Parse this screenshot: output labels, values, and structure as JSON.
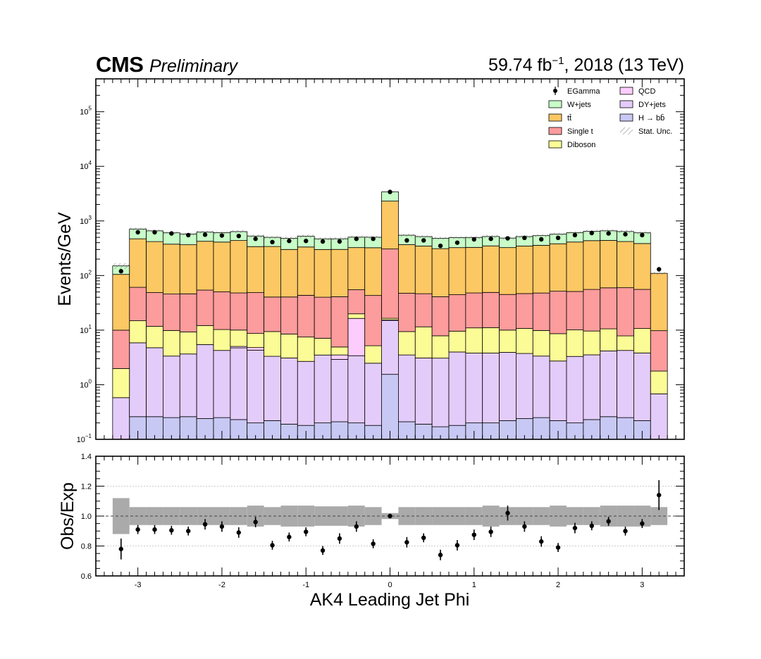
{
  "header": {
    "experiment": "CMS",
    "status": "Preliminary",
    "lumi_value": "59.74 fb",
    "lumi_exp": "−1",
    "lumi_rest": ", 2018 (13 TeV)"
  },
  "chart_data": {
    "type": "bar",
    "stacked": true,
    "xlabel": "AK4 Leading Jet Phi",
    "top": {
      "ylabel": "Events/GeV",
      "yscale": "log",
      "ylim": [
        0.1,
        400000
      ],
      "yticks": [
        {
          "v": 0.1,
          "base": "10",
          "exp": "−1"
        },
        {
          "v": 1,
          "base": "10",
          "exp": "0"
        },
        {
          "v": 10,
          "base": "10",
          "exp": "1"
        },
        {
          "v": 100,
          "base": "10",
          "exp": "2"
        },
        {
          "v": 1000,
          "base": "10",
          "exp": "3"
        },
        {
          "v": 10000,
          "base": "10",
          "exp": "4"
        },
        {
          "v": 100000,
          "base": "10",
          "exp": "5"
        }
      ]
    },
    "ratio": {
      "ylabel": "Obs/Exp",
      "ylim": [
        0.6,
        1.4
      ],
      "yticks": [
        "0.6",
        "0.8",
        "1.0",
        "1.2",
        "1.4"
      ],
      "values": [
        0.78,
        0.91,
        0.91,
        0.905,
        0.9,
        0.945,
        0.93,
        0.89,
        0.96,
        0.805,
        0.86,
        0.895,
        0.77,
        0.85,
        0.93,
        0.815,
        1.0,
        0.825,
        0.855,
        0.74,
        0.805,
        0.875,
        0.895,
        1.02,
        0.93,
        0.83,
        0.79,
        0.92,
        0.935,
        0.965,
        0.9,
        0.95,
        1.14
      ],
      "errors": [
        0.07,
        0.03,
        0.03,
        0.03,
        0.03,
        0.035,
        0.035,
        0.035,
        0.035,
        0.03,
        0.03,
        0.03,
        0.03,
        0.035,
        0.035,
        0.03,
        0.015,
        0.035,
        0.03,
        0.035,
        0.035,
        0.035,
        0.035,
        0.05,
        0.035,
        0.035,
        0.03,
        0.035,
        0.03,
        0.03,
        0.03,
        0.03,
        0.1
      ],
      "unc": [
        0.12,
        0.06,
        0.06,
        0.06,
        0.06,
        0.06,
        0.06,
        0.06,
        0.07,
        0.06,
        0.07,
        0.07,
        0.065,
        0.065,
        0.07,
        0.06,
        0.02,
        0.06,
        0.06,
        0.06,
        0.06,
        0.06,
        0.07,
        0.06,
        0.06,
        0.06,
        0.07,
        0.06,
        0.06,
        0.07,
        0.07,
        0.07,
        0.06
      ]
    },
    "x_edges": [
      -3.3,
      -3.1,
      -2.9,
      -2.7,
      -2.5,
      -2.3,
      -2.1,
      -1.9,
      -1.7,
      -1.5,
      -1.3,
      -1.1,
      -0.9,
      -0.7,
      -0.5,
      -0.3,
      -0.1,
      0.1,
      0.3,
      0.5,
      0.7,
      0.9,
      1.1,
      1.3,
      1.5,
      1.7,
      1.9,
      2.1,
      2.3,
      2.5,
      2.7,
      2.9,
      3.1,
      3.3
    ],
    "xlim": [
      -3.5,
      3.5
    ],
    "xticks": [
      "-3",
      "-2",
      "-1",
      "0",
      "1",
      "2",
      "3"
    ],
    "series": [
      {
        "name": "H → bb̄",
        "color": "#c8c8f4",
        "values": [
          0.1,
          0.26,
          0.26,
          0.25,
          0.26,
          0.24,
          0.25,
          0.23,
          0.2,
          0.22,
          0.19,
          0.18,
          0.2,
          0.21,
          0.2,
          0.18,
          1.55,
          0.21,
          0.19,
          0.17,
          0.18,
          0.2,
          0.2,
          0.22,
          0.24,
          0.25,
          0.22,
          0.2,
          0.23,
          0.26,
          0.25,
          0.22,
          0.1
        ]
      },
      {
        "name": "DY+jets",
        "color": "#e4ccfa",
        "values": [
          0.48,
          5.6,
          4.5,
          3.1,
          3.4,
          5.2,
          4.0,
          4.5,
          4.1,
          3.1,
          2.9,
          2.5,
          3.3,
          2.7,
          3.2,
          2.3,
          13.5,
          3.3,
          2.9,
          2.9,
          3.8,
          3.6,
          3.6,
          3.7,
          3.5,
          3.1,
          2.5,
          3.1,
          3.3,
          3.9,
          4.0,
          3.6,
          0.58
        ]
      },
      {
        "name": "QCD",
        "color": "#fccdfc",
        "values": [
          0.0,
          0.0,
          0.0,
          0.0,
          0.0,
          0.0,
          0.0,
          0.3,
          0.5,
          0.0,
          0.0,
          0.0,
          0.0,
          0.6,
          13.0,
          0.0,
          0.3,
          0.0,
          0.0,
          0.0,
          0.0,
          0.0,
          0.0,
          0.0,
          0.0,
          0.0,
          0.0,
          0.0,
          0.0,
          0.0,
          0.0,
          0.0,
          0.0
        ]
      },
      {
        "name": "Diboson",
        "color": "#fcfc96",
        "values": [
          1.4,
          9.0,
          7.0,
          6.5,
          5.6,
          6.7,
          6.0,
          5.0,
          3.9,
          6.1,
          5.4,
          4.8,
          3.6,
          1.4,
          3.5,
          2.7,
          1.1,
          5.9,
          8.4,
          4.8,
          5.6,
          7.2,
          7.3,
          6.1,
          7.0,
          6.5,
          5.9,
          6.8,
          6.1,
          6.4,
          3.6,
          6.9,
          1.1
        ]
      },
      {
        "name": "Single t",
        "color": "#fc9c9c",
        "values": [
          8.0,
          46.0,
          37.0,
          36.0,
          37.0,
          42.0,
          40.0,
          38.0,
          40.0,
          31.0,
          32.0,
          36.0,
          33.0,
          36.0,
          35.0,
          38.0,
          290.0,
          38.0,
          35.0,
          33.0,
          35.0,
          37.0,
          38.0,
          35.0,
          36.0,
          38.0,
          43.0,
          41.0,
          46.0,
          49.0,
          52.0,
          45.0,
          8.0
        ]
      },
      {
        "name": "tt̄",
        "color": "#fcc864",
        "values": [
          95.0,
          410.0,
          370.0,
          330.0,
          320.0,
          370.0,
          360.0,
          390.0,
          290.0,
          300.0,
          260.0,
          290.0,
          260.0,
          260.0,
          270.0,
          280.0,
          2000.0,
          320.0,
          300.0,
          270.0,
          280.0,
          280.0,
          300.0,
          280.0,
          300.0,
          310.0,
          330.0,
          360.0,
          380.0,
          380.0,
          360.0,
          330.0,
          100.0
        ]
      },
      {
        "name": "W+jets",
        "color": "#c8fcc8",
        "values": [
          45.0,
          240.0,
          240.0,
          230.0,
          210.0,
          200.0,
          200.0,
          200.0,
          190.0,
          160.0,
          180.0,
          190.0,
          170.0,
          170.0,
          180.0,
          180.0,
          1100.0,
          180.0,
          170.0,
          170.0,
          170.0,
          170.0,
          170.0,
          160.0,
          170.0,
          180.0,
          190.0,
          200.0,
          210.0,
          220.0,
          220.0,
          220.0,
          0.0
        ]
      }
    ],
    "data": {
      "name": "EGamma",
      "values": [
        120,
        620,
        620,
        590,
        550,
        560,
        540,
        530,
        470,
        410,
        430,
        430,
        420,
        420,
        470,
        470,
        3400,
        440,
        440,
        350,
        400,
        460,
        470,
        480,
        490,
        460,
        490,
        550,
        600,
        590,
        570,
        550,
        130
      ]
    },
    "legend": {
      "placement": "top-right",
      "left": [
        {
          "label": "EGamma",
          "kind": "data"
        },
        {
          "label": "W+jets",
          "kind": "fill",
          "color": "#c8fcc8"
        },
        {
          "label": "tt̄",
          "kind": "fill",
          "color": "#fcc864"
        },
        {
          "label": "Single t",
          "kind": "fill",
          "color": "#fc9c9c"
        },
        {
          "label": "Diboson",
          "kind": "fill",
          "color": "#fcfc96"
        }
      ],
      "right": [
        {
          "label": "QCD",
          "kind": "fill",
          "color": "#fccdfc"
        },
        {
          "label": "DY+jets",
          "kind": "fill",
          "color": "#e4ccfa"
        },
        {
          "label": "H → bb̄",
          "kind": "fill",
          "color": "#c8c8f4"
        },
        {
          "label": "Stat. Unc.",
          "kind": "hatch"
        }
      ]
    }
  }
}
